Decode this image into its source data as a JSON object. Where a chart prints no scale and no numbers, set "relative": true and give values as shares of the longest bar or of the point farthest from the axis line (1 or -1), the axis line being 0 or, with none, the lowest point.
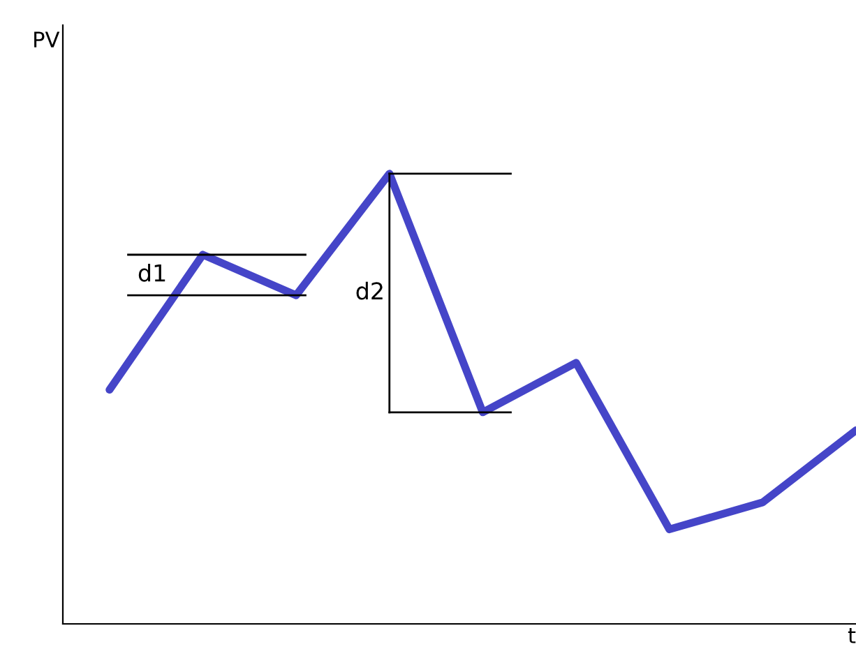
{
  "chart_data": {
    "type": "line",
    "relative": true,
    "xlabel": "t",
    "categories": [
      null,
      null,
      null,
      null,
      null,
      null,
      null,
      null,
      null
    ],
    "series": [
      {
        "color": "#4545c8",
        "values": [
          0.52,
          0.82,
          0.73,
          1.0,
          0.47,
          0.58,
          0.21,
          0.27,
          0.43
        ]
      }
    ],
    "annotations": [
      "PV",
      "d1",
      "d2"
    ],
    "grid": false,
    "legend": false,
    "marker": "none",
    "line_style": "solid"
  }
}
